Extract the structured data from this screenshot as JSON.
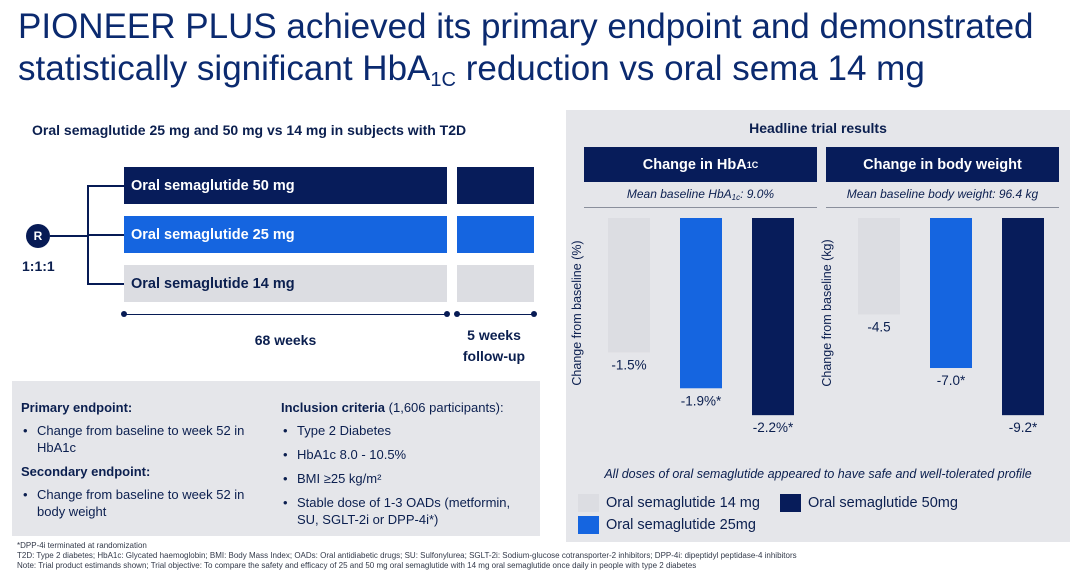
{
  "title": {
    "line1": "PIONEER PLUS achieved its primary endpoint and demonstrated",
    "line2_pre": "statistically significant HbA",
    "line2_sub": "1C",
    "line2_post": " reduction vs oral sema 14 mg"
  },
  "design": {
    "subtitle": "Oral semaglutide 25 mg and 50 mg vs 14 mg in subjects with T2D",
    "randomization_symbol": "R",
    "ratio": "1:1:1",
    "arms": [
      {
        "label": "Oral semaglutide 50 mg",
        "color": "#071c5a"
      },
      {
        "label": "Oral semaglutide 25 mg",
        "color": "#1565e0"
      },
      {
        "label": "Oral semaglutide 14 mg",
        "color": "#dcdde2"
      }
    ],
    "treatment_period": "68 weeks",
    "followup_line1": "5 weeks",
    "followup_line2": "follow-up"
  },
  "endpoints": {
    "primary_heading": "Primary endpoint:",
    "primary_items": [
      "Change from baseline to week 52 in HbA1c"
    ],
    "secondary_heading": "Secondary endpoint:",
    "secondary_items": [
      "Change from baseline to week 52 in body weight"
    ],
    "inclusion_heading": "Inclusion criteria",
    "inclusion_note": " (1,606 participants):",
    "inclusion_items": [
      "Type 2 Diabetes",
      "HbA1c 8.0 - 10.5%",
      "BMI ≥25 kg/m²",
      "Stable dose of 1-3 OADs (metformin, SU, SGLT-2i or DPP-4i*)"
    ]
  },
  "footnotes": [
    "*DPP-4i terminated at randomization",
    "T2D: Type 2 diabetes; HbA1c: Glycated haemoglobin; BMI: Body Mass Index; OADs: Oral antidiabetic drugs; SU: Sulfonylurea; SGLT-2i: Sodium-glucose cotransporter-2 inhibitors; DPP-4i: dipeptidyl peptidase-4 inhibitors",
    "Note: Trial product estimands shown; Trial objective:  To compare the safety and efficacy of 25 and 50 mg oral semaglutide with 14 mg oral semaglutide once daily in people with type 2 diabetes"
  ],
  "results": {
    "title": "Headline trial results",
    "safety_note": "All doses of oral semaglutide appeared to have safe and well-tolerated profile",
    "hba1c_header_pre": "Change in HbA",
    "hba1c_header_sub": "1C",
    "hba1c_baseline_pre": "Mean baseline HbA",
    "hba1c_baseline_sub": "1c",
    "hba1c_baseline_post": ": 9.0%",
    "weight_header": "Change in body weight",
    "weight_baseline": "Mean baseline body weight: 96.4 kg"
  },
  "chart_data": [
    {
      "type": "bar",
      "title": "Change in HbA1C",
      "subtitle": "Mean baseline HbA1c: 9.0%",
      "ylabel": "Change from baseline (%)",
      "categories": [
        "Oral semaglutide 14 mg",
        "Oral semaglutide 25mg",
        "Oral semaglutide 50mg"
      ],
      "values": [
        -1.5,
        -1.9,
        -2.2
      ],
      "data_labels": [
        "-1.5%",
        "-1.9%*",
        "-2.2%*"
      ],
      "colors": [
        "#dcdde2",
        "#1565e0",
        "#071c5a"
      ],
      "ylim": [
        -2.2,
        0
      ]
    },
    {
      "type": "bar",
      "title": "Change in body weight",
      "subtitle": "Mean baseline body weight: 96.4 kg",
      "ylabel": "Change from baseline (kg)",
      "categories": [
        "Oral semaglutide 14 mg",
        "Oral semaglutide 25mg",
        "Oral semaglutide 50mg"
      ],
      "values": [
        -4.5,
        -7.0,
        -9.2
      ],
      "data_labels": [
        "-4.5",
        "-7.0*",
        "-9.2*"
      ],
      "colors": [
        "#dcdde2",
        "#1565e0",
        "#071c5a"
      ],
      "ylim": [
        -9.2,
        0
      ]
    }
  ],
  "legend": [
    {
      "label": "Oral semaglutide 14 mg",
      "color": "#dcdde2"
    },
    {
      "label": "Oral semaglutide 50mg",
      "color": "#071c5a"
    },
    {
      "label": "Oral semaglutide 25mg",
      "color": "#1565e0"
    }
  ]
}
